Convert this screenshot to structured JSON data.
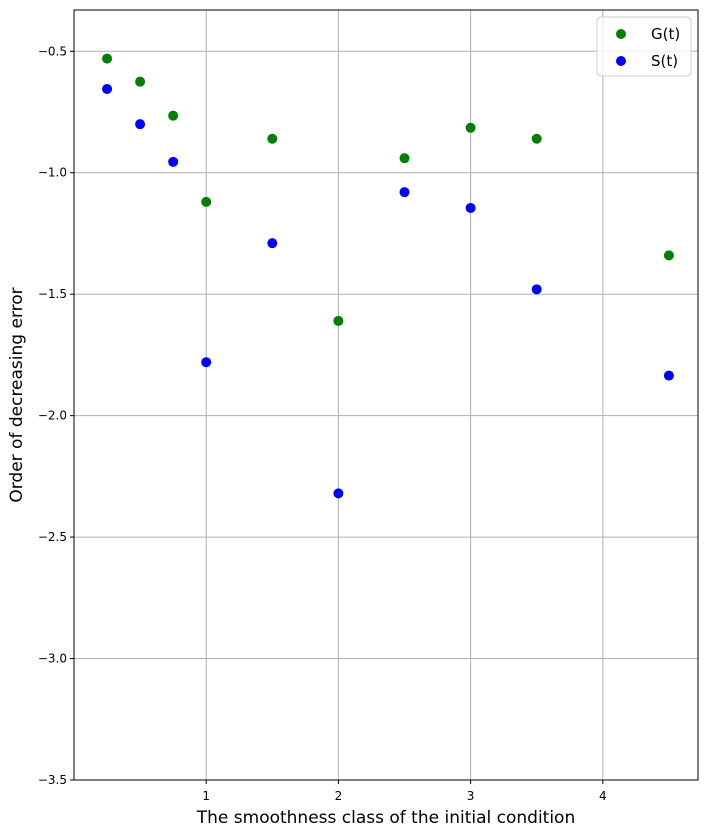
{
  "chart_data": {
    "type": "scatter",
    "xlabel": "The smoothness class of the initial condition",
    "ylabel": "Order of decreasing error",
    "xlim": [
      0.0,
      4.72
    ],
    "ylim": [
      -3.5,
      -0.33
    ],
    "xticks": [
      1,
      2,
      3,
      4
    ],
    "yticks": [
      -3.5,
      -3.0,
      -2.5,
      -2.0,
      -1.5,
      -1.0,
      -0.5
    ],
    "xtick_labels": [
      "1",
      "2",
      "3",
      "4"
    ],
    "ytick_labels": [
      "−3.5",
      "−3.0",
      "−2.5",
      "−2.0",
      "−1.5",
      "−1.0",
      "−0.5"
    ],
    "grid": true,
    "legend_position": "top-right",
    "series": [
      {
        "name": "G(t)",
        "color": "#008000",
        "x": [
          0.25,
          0.5,
          0.75,
          1.0,
          1.5,
          2.0,
          2.5,
          3.0,
          3.5,
          4.5
        ],
        "y": [
          -0.53,
          -0.625,
          -0.765,
          -1.12,
          -0.86,
          -1.61,
          -0.94,
          -0.815,
          -0.86,
          -1.34
        ]
      },
      {
        "name": "S(t)",
        "color": "#0000ff",
        "x": [
          0.25,
          0.5,
          0.75,
          1.0,
          1.5,
          2.0,
          2.5,
          3.0,
          3.5,
          4.5
        ],
        "y": [
          -0.655,
          -0.8,
          -0.955,
          -1.78,
          -1.29,
          -2.32,
          -1.08,
          -1.145,
          -1.48,
          -1.835
        ]
      }
    ]
  }
}
